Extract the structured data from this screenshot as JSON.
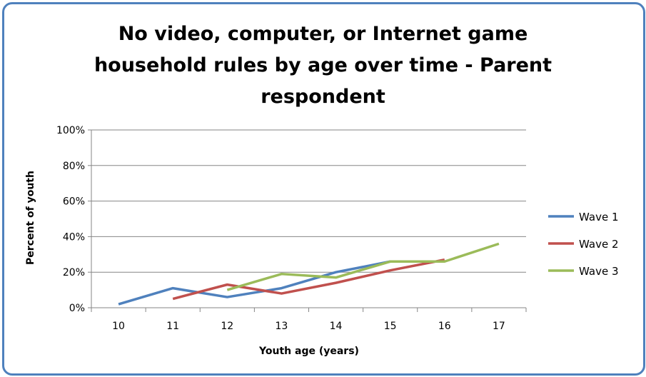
{
  "chart_data": {
    "type": "line",
    "title": "No video, computer, or Internet game household rules by age over time - Parent respondent",
    "xlabel": "Youth age (years)",
    "ylabel": "Percent of youth",
    "categories": [
      "10",
      "11",
      "12",
      "13",
      "14",
      "15",
      "16",
      "17"
    ],
    "ylim": [
      0,
      100
    ],
    "yticks": [
      "0%",
      "20%",
      "40%",
      "60%",
      "80%",
      "100%"
    ],
    "grid": true,
    "legend_position": "right",
    "series": [
      {
        "name": "Wave 1",
        "color": "#4f81bd",
        "values": [
          2,
          11,
          6,
          11,
          20,
          26,
          null,
          null
        ]
      },
      {
        "name": "Wave 2",
        "color": "#c0504d",
        "values": [
          null,
          5,
          13,
          8,
          14,
          21,
          27,
          null
        ]
      },
      {
        "name": "Wave 3",
        "color": "#9bbb59",
        "values": [
          null,
          null,
          10,
          19,
          17,
          26,
          26,
          36
        ]
      }
    ]
  }
}
